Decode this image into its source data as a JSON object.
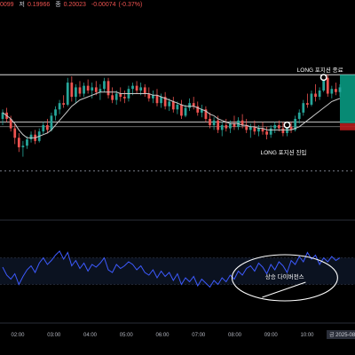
{
  "header": {
    "fragment": "0099",
    "low_label": "저",
    "low_value": "0.19966",
    "close_label": "종",
    "close_value": "0.20023",
    "change_value": "-0.00074",
    "change_pct": "(-0.37%)"
  },
  "annotations": {
    "exit_label": "LONG 포지션 종료",
    "entry_label": "LONG 포지션 진입",
    "divergence_label": "상승 다이버전스"
  },
  "colors": {
    "background": "#000000",
    "up": "#26a69a",
    "down": "#ef5350",
    "ma_line": "#c8c8c8",
    "oscillator": "#3d5afe",
    "panel_fill": "#0b1220",
    "level_line": "#ffffff",
    "legend_value": "#ef5350",
    "profit_zone": "#089981",
    "loss_zone": "#b71c1c"
  },
  "chart_data": {
    "type": "candlestick",
    "x_labels": [
      "02:00",
      "03:00",
      "04:00",
      "05:00",
      "06:00",
      "07:00",
      "08:00",
      "09:00",
      "10:00"
    ],
    "last_x_label": "금 2025-08",
    "candles": [
      [
        0.202,
        0.2026,
        0.2016,
        0.2024
      ],
      [
        0.2024,
        0.2027,
        0.2018,
        0.202
      ],
      [
        0.202,
        0.2022,
        0.2012,
        0.2014
      ],
      [
        0.2014,
        0.2017,
        0.2004,
        0.2008
      ],
      [
        0.2008,
        0.2011,
        0.1999,
        0.2002
      ],
      [
        0.2002,
        0.2006,
        0.1996,
        0.2003
      ],
      [
        0.2003,
        0.2009,
        0.2001,
        0.2007
      ],
      [
        0.2007,
        0.2012,
        0.2005,
        0.201
      ],
      [
        0.201,
        0.2013,
        0.2004,
        0.2006
      ],
      [
        0.2006,
        0.2014,
        0.2005,
        0.2012
      ],
      [
        0.2012,
        0.2018,
        0.201,
        0.2016
      ],
      [
        0.2016,
        0.202,
        0.2011,
        0.2013
      ],
      [
        0.2013,
        0.2024,
        0.2012,
        0.2022
      ],
      [
        0.2022,
        0.2028,
        0.2019,
        0.2026
      ],
      [
        0.2026,
        0.2032,
        0.2023,
        0.203
      ],
      [
        0.203,
        0.2035,
        0.2027,
        0.2029
      ],
      [
        0.2029,
        0.2046,
        0.2028,
        0.2043
      ],
      [
        0.2043,
        0.2047,
        0.2031,
        0.2034
      ],
      [
        0.2034,
        0.2042,
        0.203,
        0.204
      ],
      [
        0.204,
        0.2044,
        0.2034,
        0.2036
      ],
      [
        0.2036,
        0.2043,
        0.2034,
        0.2041
      ],
      [
        0.2041,
        0.2045,
        0.2036,
        0.2038
      ],
      [
        0.2038,
        0.2043,
        0.2033,
        0.204
      ],
      [
        0.204,
        0.2044,
        0.2035,
        0.2037
      ],
      [
        0.2037,
        0.2042,
        0.2032,
        0.2039
      ],
      [
        0.2039,
        0.2046,
        0.2037,
        0.2044
      ],
      [
        0.2044,
        0.2046,
        0.2033,
        0.2035
      ],
      [
        0.2035,
        0.204,
        0.203,
        0.2032
      ],
      [
        0.2032,
        0.2038,
        0.2029,
        0.2036
      ],
      [
        0.2036,
        0.204,
        0.2031,
        0.2034
      ],
      [
        0.2034,
        0.2038,
        0.203,
        0.2033
      ],
      [
        0.2033,
        0.2041,
        0.2031,
        0.2039
      ],
      [
        0.2039,
        0.2043,
        0.2035,
        0.2041
      ],
      [
        0.2041,
        0.2044,
        0.2036,
        0.2038
      ],
      [
        0.2038,
        0.2043,
        0.2035,
        0.204
      ],
      [
        0.204,
        0.2042,
        0.2034,
        0.2036
      ],
      [
        0.2036,
        0.204,
        0.2031,
        0.2033
      ],
      [
        0.2033,
        0.2038,
        0.203,
        0.2035
      ],
      [
        0.2035,
        0.2039,
        0.2028,
        0.203
      ],
      [
        0.203,
        0.2036,
        0.2027,
        0.2034
      ],
      [
        0.2034,
        0.2037,
        0.2026,
        0.2028
      ],
      [
        0.2028,
        0.2033,
        0.2025,
        0.2031
      ],
      [
        0.2031,
        0.2034,
        0.2024,
        0.2026
      ],
      [
        0.2026,
        0.2031,
        0.2023,
        0.2029
      ],
      [
        0.2029,
        0.2032,
        0.202,
        0.2022
      ],
      [
        0.2022,
        0.2029,
        0.2021,
        0.2027
      ],
      [
        0.2027,
        0.2033,
        0.2025,
        0.203
      ],
      [
        0.203,
        0.2034,
        0.2026,
        0.2028
      ],
      [
        0.2028,
        0.2031,
        0.2022,
        0.2024
      ],
      [
        0.2024,
        0.2029,
        0.2021,
        0.2026
      ],
      [
        0.2026,
        0.2028,
        0.2018,
        0.202
      ],
      [
        0.202,
        0.2024,
        0.2014,
        0.2016
      ],
      [
        0.2016,
        0.2021,
        0.2013,
        0.2019
      ],
      [
        0.2019,
        0.2022,
        0.2011,
        0.2013
      ],
      [
        0.2013,
        0.2018,
        0.2009,
        0.2016
      ],
      [
        0.2016,
        0.202,
        0.2012,
        0.2014
      ],
      [
        0.2014,
        0.2019,
        0.2011,
        0.2017
      ],
      [
        0.2017,
        0.2022,
        0.2013,
        0.2015
      ],
      [
        0.2015,
        0.2021,
        0.2013,
        0.2019
      ],
      [
        0.2019,
        0.2023,
        0.2014,
        0.2016
      ],
      [
        0.2016,
        0.202,
        0.2011,
        0.2013
      ],
      [
        0.2013,
        0.2017,
        0.2008,
        0.2015
      ],
      [
        0.2015,
        0.2019,
        0.201,
        0.2012
      ],
      [
        0.2012,
        0.2016,
        0.2009,
        0.2014
      ],
      [
        0.2014,
        0.2018,
        0.201,
        0.2012
      ],
      [
        0.2012,
        0.2015,
        0.2007,
        0.201
      ],
      [
        0.201,
        0.2016,
        0.2008,
        0.2014
      ],
      [
        0.2014,
        0.2018,
        0.2011,
        0.2016
      ],
      [
        0.2016,
        0.2019,
        0.2012,
        0.2014
      ],
      [
        0.2014,
        0.2018,
        0.2009,
        0.2011
      ],
      [
        0.2011,
        0.2016,
        0.2009,
        0.2015
      ],
      [
        0.2015,
        0.2018,
        0.2011,
        0.2013
      ],
      [
        0.2013,
        0.2022,
        0.2012,
        0.202
      ],
      [
        0.202,
        0.2026,
        0.2017,
        0.2024
      ],
      [
        0.2024,
        0.2032,
        0.2022,
        0.203
      ],
      [
        0.203,
        0.2036,
        0.2027,
        0.2029
      ],
      [
        0.2029,
        0.2038,
        0.2028,
        0.2036
      ],
      [
        0.2036,
        0.2042,
        0.2031,
        0.2034
      ],
      [
        0.2034,
        0.204,
        0.2032,
        0.2038
      ],
      [
        0.2038,
        0.2048,
        0.2037,
        0.2046
      ],
      [
        0.2046,
        0.2048,
        0.2034,
        0.2036
      ],
      [
        0.2036,
        0.2041,
        0.2033,
        0.2039
      ],
      [
        0.2039,
        0.2043,
        0.2035,
        0.2037
      ],
      [
        0.2037,
        0.2042,
        0.2034,
        0.204
      ]
    ],
    "moving_average": [
      0.2024,
      0.2022,
      0.202,
      0.2017,
      0.2013,
      0.201,
      0.2008,
      0.2008,
      0.2008,
      0.2009,
      0.201,
      0.2011,
      0.2013,
      0.2016,
      0.2019,
      0.2022,
      0.2025,
      0.2028,
      0.203,
      0.2032,
      0.2033,
      0.2034,
      0.2035,
      0.2036,
      0.2037,
      0.2037,
      0.2037,
      0.2037,
      0.2037,
      0.2036,
      0.2036,
      0.2036,
      0.2036,
      0.2036,
      0.2036,
      0.2036,
      0.2036,
      0.2035,
      0.2035,
      0.2034,
      0.2033,
      0.2032,
      0.2031,
      0.203,
      0.2029,
      0.2028,
      0.2028,
      0.2028,
      0.2027,
      0.2026,
      0.2025,
      0.2023,
      0.2022,
      0.202,
      0.2019,
      0.2018,
      0.2017,
      0.2017,
      0.2017,
      0.2016,
      0.2016,
      0.2015,
      0.2015,
      0.2014,
      0.2014,
      0.2013,
      0.2013,
      0.2013,
      0.2013,
      0.2013,
      0.2013,
      0.2013,
      0.2014,
      0.2015,
      0.2017,
      0.2019,
      0.2021,
      0.2023,
      0.2025,
      0.2027,
      0.2029,
      0.2031,
      0.2032,
      0.2033
    ],
    "levels": {
      "upper_resistance": 0.2048,
      "support": 0.2018,
      "entry": 0.2015,
      "dotted_low": 0.1987
    },
    "ylim": [
      0.198,
      0.2056
    ],
    "entry_index": 70,
    "exit_index": 79,
    "oscillator": {
      "ylim": [
        0,
        100
      ],
      "band": [
        30,
        70
      ],
      "values": [
        56,
        44,
        38,
        46,
        30,
        42,
        52,
        58,
        48,
        62,
        70,
        60,
        66,
        74,
        80,
        68,
        78,
        58,
        66,
        54,
        62,
        50,
        60,
        56,
        62,
        70,
        52,
        48,
        60,
        54,
        58,
        64,
        60,
        52,
        58,
        48,
        44,
        52,
        40,
        50,
        42,
        48,
        36,
        46,
        30,
        40,
        34,
        42,
        28,
        38,
        32,
        26,
        36,
        30,
        40,
        34,
        44,
        38,
        50,
        44,
        54,
        58,
        50,
        62,
        56,
        46,
        60,
        52,
        64,
        58,
        48,
        66,
        60,
        72,
        64,
        78,
        68,
        74,
        60,
        70,
        64,
        72,
        66,
        70
      ],
      "divergence_start_index": 63,
      "divergence_end_index": 75
    }
  }
}
